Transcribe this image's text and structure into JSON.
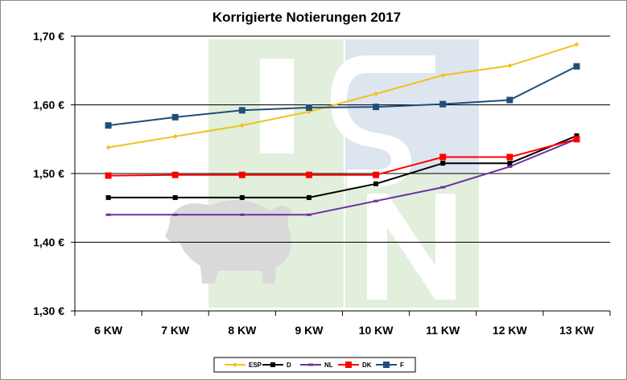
{
  "chart_data": {
    "type": "line",
    "title": "Korrigierte Notierungen 2017",
    "xlabel": "",
    "ylabel": "",
    "categories": [
      "6 KW",
      "7 KW",
      "8 KW",
      "9 KW",
      "10 KW",
      "11 KW",
      "12 KW",
      "13 KW"
    ],
    "ylim": [
      1.3,
      1.7
    ],
    "yticks": [
      1.3,
      1.4,
      1.5,
      1.6,
      1.7
    ],
    "ytick_labels": [
      "1,30 €",
      "1,40 €",
      "1,50 €",
      "1,60 €",
      "1,70 €"
    ],
    "grid": "horizontal",
    "legend_position": "bottom",
    "watermark": "ISN",
    "series": [
      {
        "name": "ESP",
        "color": "#f2c11d",
        "marker": "diamond",
        "values": [
          1.538,
          1.554,
          1.57,
          1.59,
          1.616,
          1.643,
          1.657,
          1.688
        ]
      },
      {
        "name": "D",
        "color": "#000000",
        "marker": "square",
        "values": [
          1.465,
          1.465,
          1.465,
          1.465,
          1.485,
          1.515,
          1.515,
          1.555
        ]
      },
      {
        "name": "NL",
        "color": "#7030a0",
        "marker": "dash",
        "values": [
          1.44,
          1.44,
          1.44,
          1.44,
          1.46,
          1.48,
          1.51,
          1.55
        ]
      },
      {
        "name": "DK",
        "color": "#ff0000",
        "marker": "square",
        "values": [
          1.497,
          1.498,
          1.498,
          1.498,
          1.498,
          1.524,
          1.524,
          1.55
        ]
      },
      {
        "name": "F",
        "color": "#1f4e79",
        "marker": "square",
        "values": [
          1.57,
          1.582,
          1.592,
          1.596,
          1.597,
          1.601,
          1.607,
          1.656
        ]
      }
    ]
  }
}
